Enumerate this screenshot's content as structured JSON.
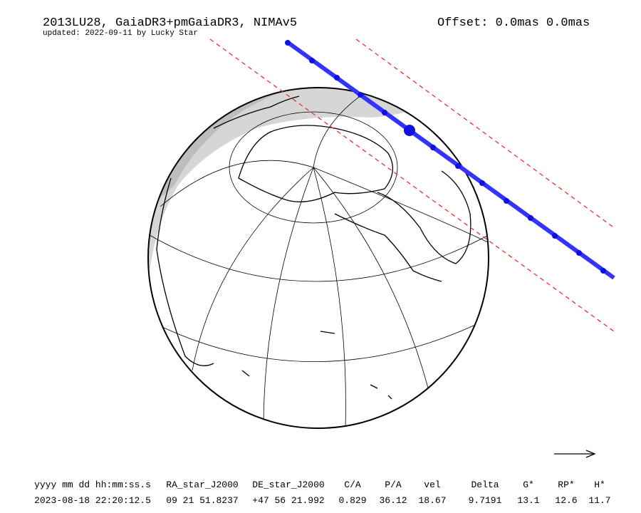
{
  "header": {
    "title": "2013LU28, GaiaDR3+pmGaiaDR3, NIMAv5",
    "subtitle": "updated: 2022-09-11 by Lucky Star",
    "offset": "Offset: 0.0mas 0.0mas"
  },
  "table": {
    "columns": [
      "yyyy mm dd hh:mm:ss.s",
      "RA_star_J2000",
      "DE_star_J2000",
      "C/A",
      "P/A",
      "vel",
      "Delta",
      "G*",
      "RP*",
      "H*"
    ],
    "rows": [
      [
        "2023-08-18 22:20:12.5",
        "09 21 51.8237",
        "+47 56 21.992",
        "0.829",
        "36.12",
        "18.67",
        "9.7191",
        "13.1",
        "12.6",
        "11.7"
      ]
    ]
  }
}
